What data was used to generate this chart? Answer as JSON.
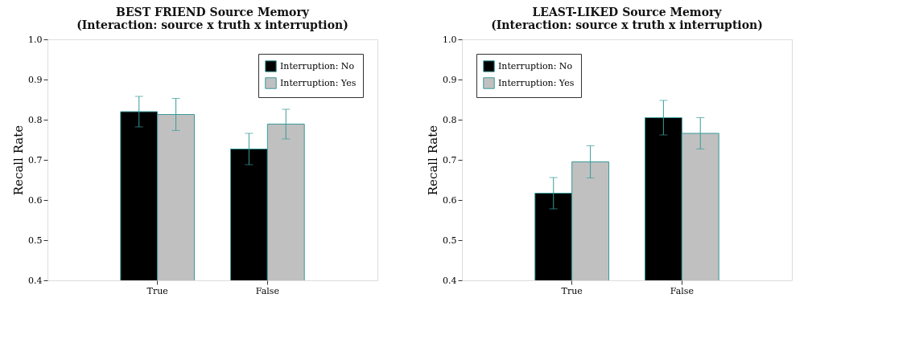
{
  "chart_data": [
    {
      "type": "bar",
      "title": "BEST FRIEND Source Memory\n(Interaction: source x truth x interruption)",
      "ylabel": "Recall Rate",
      "categories": [
        "True",
        "False"
      ],
      "ylim": [
        0.4,
        1.0
      ],
      "yticks": [
        0.4,
        0.5,
        0.6,
        0.7,
        0.8,
        0.9,
        {
          "value": 1.0,
          "label": "1.0"
        }
      ],
      "legend": "top right",
      "grid": false,
      "series": [
        {
          "name": "Interruption: No",
          "color": "#000000",
          "values": [
            0.82,
            0.727
          ],
          "errors": [
            [
              0.782,
              0.858
            ],
            [
              0.688,
              0.766
            ]
          ]
        },
        {
          "name": "Interruption: Yes",
          "color": "#c0c0c0",
          "values": [
            0.813,
            0.789
          ],
          "errors": [
            [
              0.773,
              0.853
            ],
            [
              0.752,
              0.826
            ]
          ]
        }
      ]
    },
    {
      "type": "bar",
      "title": "LEAST-LIKED Source Memory\n(Interaction: source x truth x interruption)",
      "ylabel": "Recall Rate",
      "categories": [
        "True",
        "False"
      ],
      "ylim": [
        0.4,
        1.0
      ],
      "yticks": [
        0.4,
        0.5,
        0.6,
        0.7,
        0.8,
        0.9,
        {
          "value": 1.0,
          "label": "1.0"
        }
      ],
      "legend": "top left",
      "grid": false,
      "series": [
        {
          "name": "Interruption: No",
          "color": "#000000",
          "values": [
            0.617,
            0.805
          ],
          "errors": [
            [
              0.578,
              0.656
            ],
            [
              0.762,
              0.848
            ]
          ]
        },
        {
          "name": "Interruption: Yes",
          "color": "#c0c0c0",
          "values": [
            0.695,
            0.766
          ],
          "errors": [
            [
              0.655,
              0.735
            ],
            [
              0.727,
              0.805
            ]
          ]
        }
      ]
    }
  ]
}
